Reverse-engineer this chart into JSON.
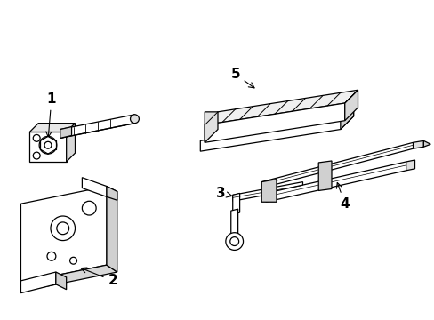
{
  "background_color": "#ffffff",
  "line_color": "#000000",
  "figsize": [
    4.89,
    3.6
  ],
  "dpi": 100,
  "lw": 0.9
}
